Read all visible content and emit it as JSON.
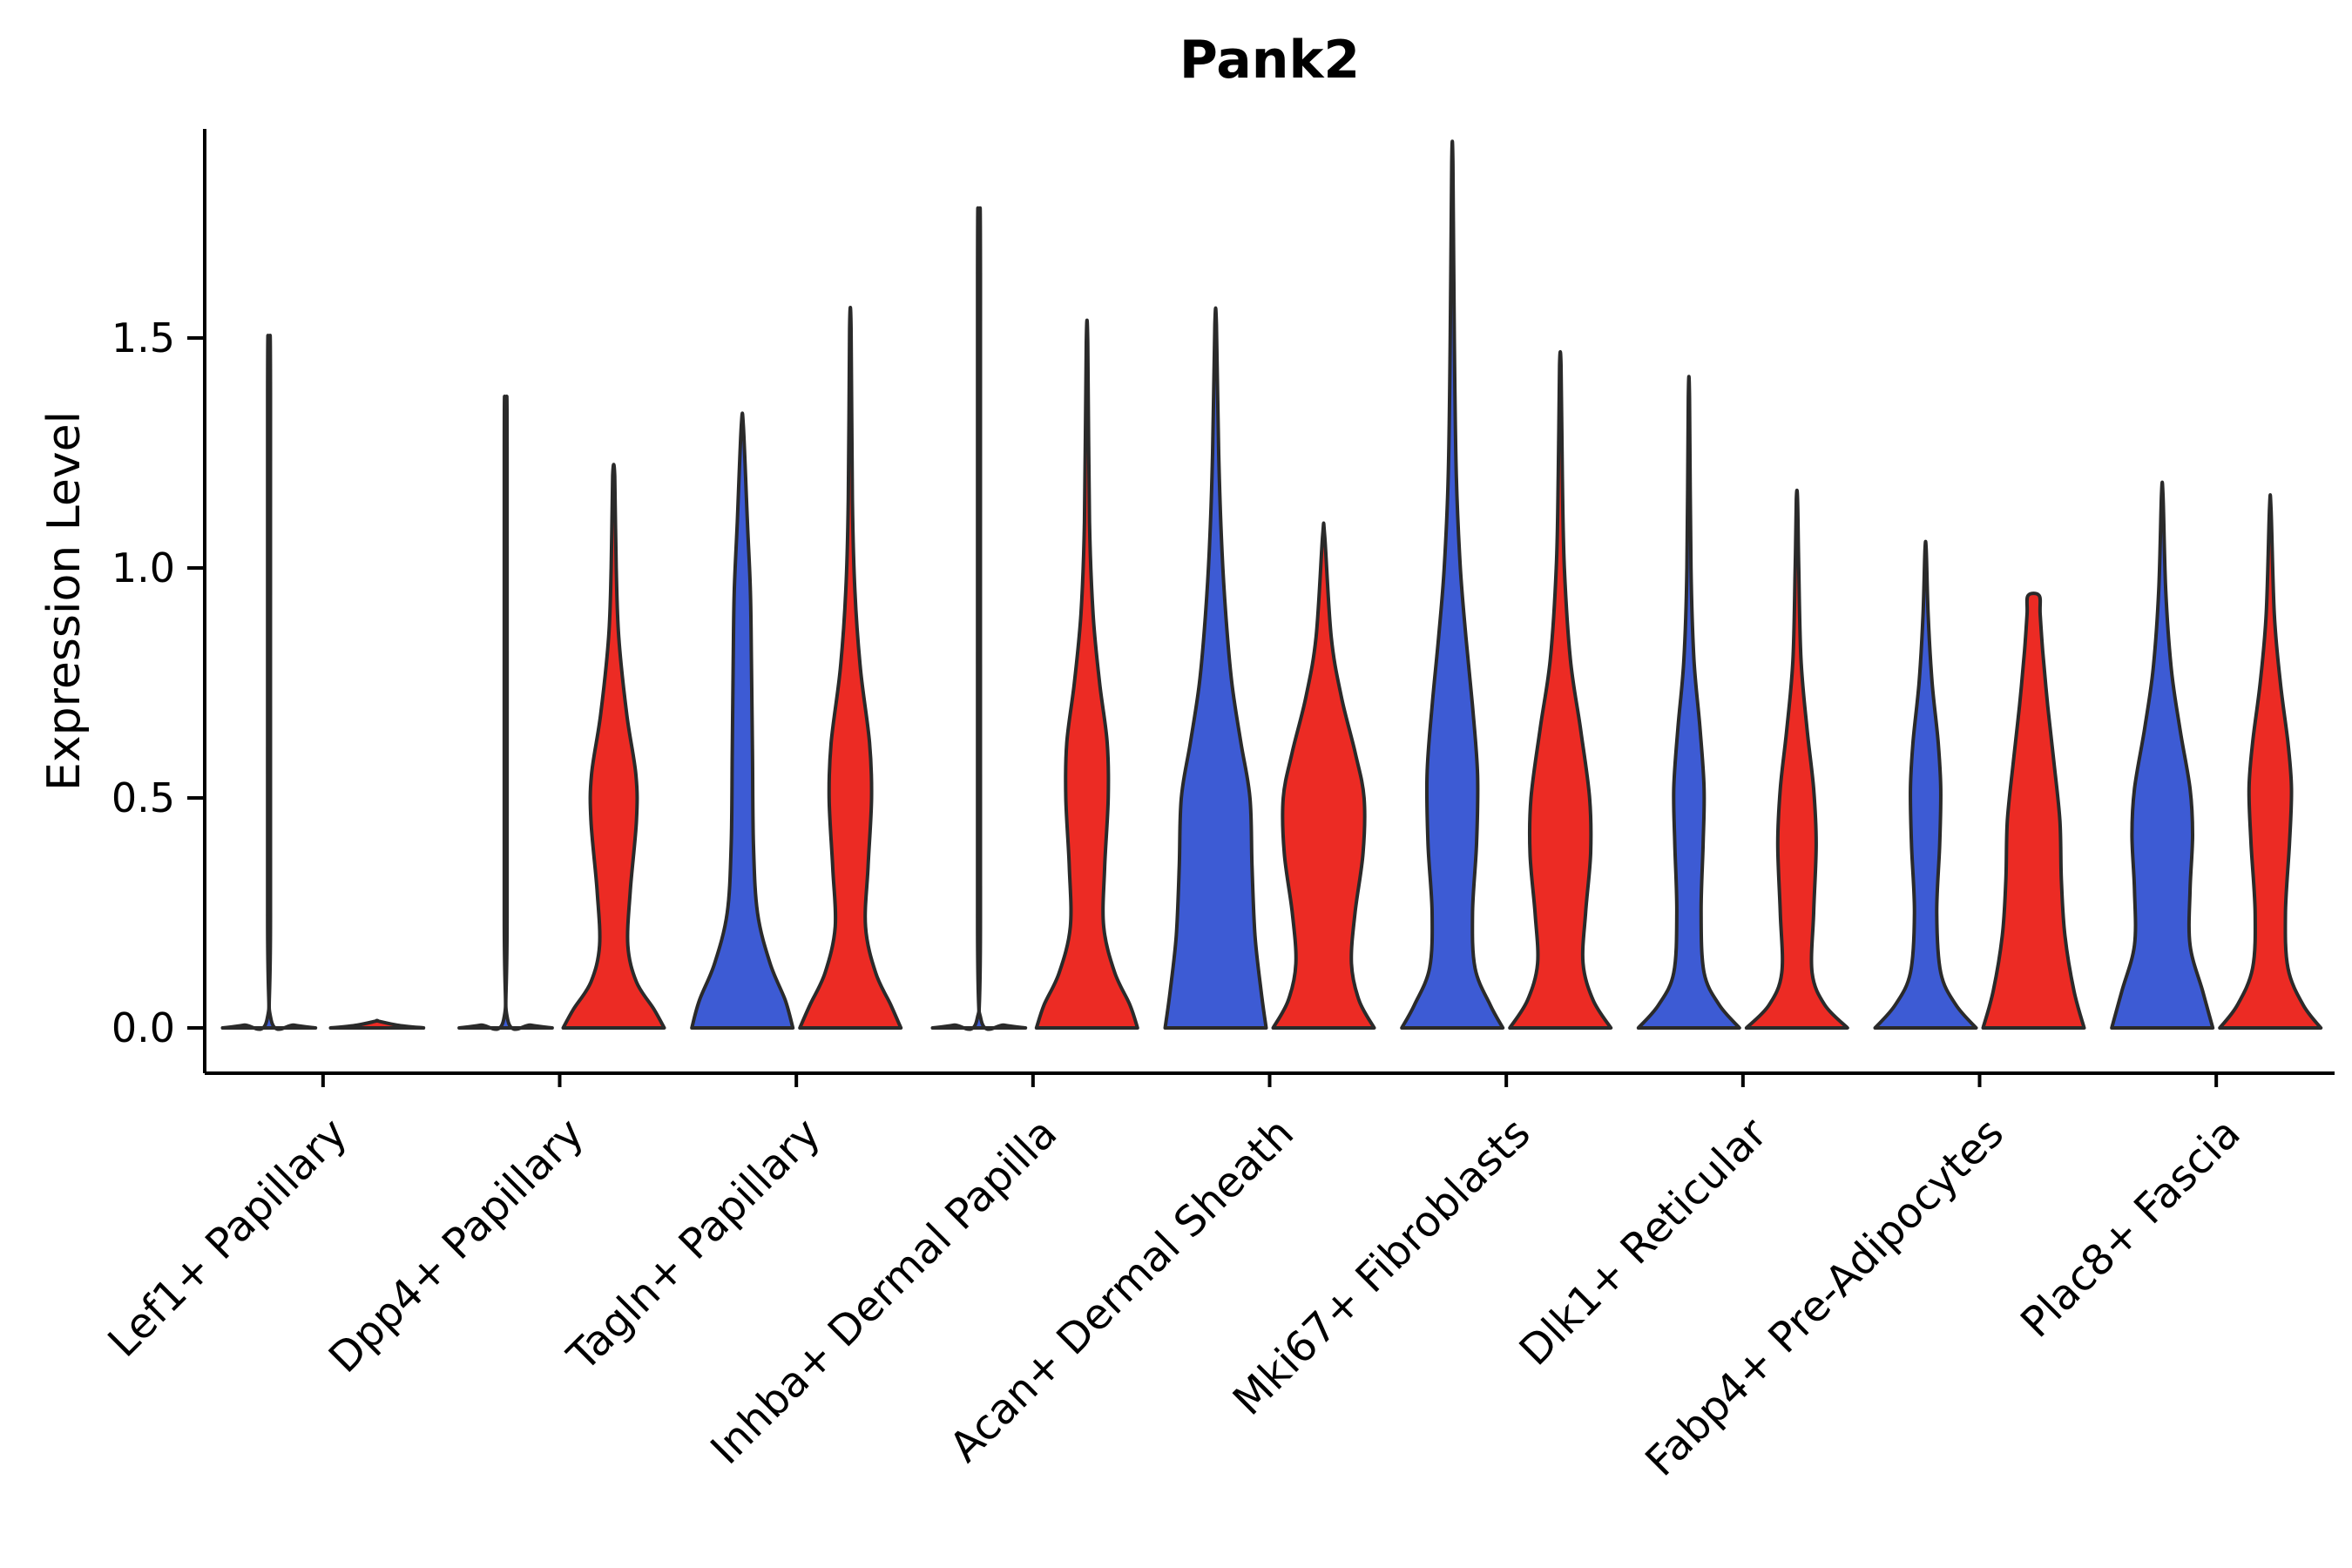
{
  "chart_data": {
    "type": "violin",
    "title": "Pank2",
    "ylabel": "Expression Level",
    "xlabel": "",
    "legend": "none",
    "grid": false,
    "ylim": [
      -0.1,
      1.95
    ],
    "yticks": [
      {
        "label": "0.0",
        "value": 0.0
      },
      {
        "label": "0.5",
        "value": 0.5
      },
      {
        "label": "1.0",
        "value": 1.0
      },
      {
        "label": "1.5",
        "value": 1.5
      }
    ],
    "colors": {
      "blue": "#3D5BD4",
      "red": "#EC2B24",
      "outline": "#2a2a2a",
      "axis": "#000000",
      "text": "#000000"
    },
    "categories": [
      "Lef1+ Papillary",
      "Dpp4+ Papillary",
      "Tagln+ Papillary",
      "Inhba+ Dermal Papilla",
      "Acan+ Dermal Sheath",
      "Mki67+ Fibroblasts",
      "Dlk1+ Reticular",
      "Fabp4+ Pre-Adipocytes",
      "Plac8+ Fascia"
    ],
    "violins": [
      {
        "category": "Lef1+ Papillary",
        "pair": [
          {
            "side": "left",
            "color": "blue",
            "max_expression": 1.49,
            "profile": [
              [
                0,
                0.92
              ],
              [
                0.006,
                0.5
              ],
              [
                0.018,
                0.04
              ],
              [
                0.25,
                0.028
              ],
              [
                1.38,
                0.028
              ],
              [
                1.49,
                0.012
              ]
            ]
          },
          {
            "side": "right",
            "color": "red",
            "max_expression": 0.02,
            "profile": [
              [
                0,
                0.92
              ],
              [
                0.006,
                0.4
              ],
              [
                0.015,
                0.012
              ]
            ]
          }
        ]
      },
      {
        "category": "Dpp4+ Papillary",
        "pair": [
          {
            "side": "left",
            "color": "blue",
            "max_expression": 1.36,
            "profile": [
              [
                0,
                0.92
              ],
              [
                0.006,
                0.5
              ],
              [
                0.018,
                0.04
              ],
              [
                0.25,
                0.028
              ],
              [
                1.26,
                0.028
              ],
              [
                1.36,
                0.012
              ]
            ]
          },
          {
            "side": "right",
            "color": "red",
            "max_expression": 1.2,
            "profile": [
              [
                0,
                1.0
              ],
              [
                0.04,
                0.8
              ],
              [
                0.1,
                0.45
              ],
              [
                0.18,
                0.28
              ],
              [
                0.3,
                0.33
              ],
              [
                0.45,
                0.45
              ],
              [
                0.55,
                0.44
              ],
              [
                0.68,
                0.26
              ],
              [
                0.85,
                0.1
              ],
              [
                1.0,
                0.05
              ],
              [
                1.2,
                0.02
              ]
            ]
          }
        ]
      },
      {
        "category": "Tagln+ Papillary",
        "pair": [
          {
            "side": "left",
            "color": "blue",
            "max_expression": 1.31,
            "profile": [
              [
                0,
                1.0
              ],
              [
                0.06,
                0.85
              ],
              [
                0.14,
                0.55
              ],
              [
                0.25,
                0.3
              ],
              [
                0.4,
                0.22
              ],
              [
                0.6,
                0.2
              ],
              [
                0.8,
                0.18
              ],
              [
                0.95,
                0.16
              ],
              [
                1.1,
                0.1
              ],
              [
                1.31,
                0.02
              ]
            ]
          },
          {
            "side": "right",
            "color": "red",
            "max_expression": 1.52,
            "profile": [
              [
                0,
                1.0
              ],
              [
                0.05,
                0.8
              ],
              [
                0.12,
                0.5
              ],
              [
                0.22,
                0.3
              ],
              [
                0.35,
                0.35
              ],
              [
                0.5,
                0.42
              ],
              [
                0.62,
                0.38
              ],
              [
                0.78,
                0.2
              ],
              [
                0.95,
                0.09
              ],
              [
                1.15,
                0.04
              ],
              [
                1.52,
                0.015
              ]
            ]
          }
        ]
      },
      {
        "category": "Inhba+ Dermal Papilla",
        "pair": [
          {
            "side": "left",
            "color": "blue",
            "max_expression": 1.75,
            "profile": [
              [
                0,
                0.92
              ],
              [
                0.006,
                0.5
              ],
              [
                0.018,
                0.04
              ],
              [
                0.25,
                0.028
              ],
              [
                1.64,
                0.028
              ],
              [
                1.75,
                0.012
              ]
            ]
          },
          {
            "side": "right",
            "color": "red",
            "max_expression": 1.49,
            "profile": [
              [
                0,
                1.0
              ],
              [
                0.05,
                0.85
              ],
              [
                0.12,
                0.55
              ],
              [
                0.22,
                0.33
              ],
              [
                0.35,
                0.35
              ],
              [
                0.5,
                0.42
              ],
              [
                0.62,
                0.4
              ],
              [
                0.75,
                0.25
              ],
              [
                0.9,
                0.12
              ],
              [
                1.1,
                0.05
              ],
              [
                1.49,
                0.015
              ]
            ]
          }
        ]
      },
      {
        "category": "Acan+ Dermal Sheath",
        "pair": [
          {
            "side": "left",
            "color": "blue",
            "max_expression": 1.53,
            "profile": [
              [
                0,
                1.0
              ],
              [
                0.08,
                0.9
              ],
              [
                0.2,
                0.78
              ],
              [
                0.35,
                0.72
              ],
              [
                0.5,
                0.68
              ],
              [
                0.62,
                0.5
              ],
              [
                0.75,
                0.32
              ],
              [
                0.9,
                0.2
              ],
              [
                1.05,
                0.12
              ],
              [
                1.25,
                0.06
              ],
              [
                1.53,
                0.015
              ]
            ]
          },
          {
            "side": "right",
            "color": "red",
            "max_expression": 1.07,
            "profile": [
              [
                0,
                1.0
              ],
              [
                0.06,
                0.7
              ],
              [
                0.14,
                0.55
              ],
              [
                0.25,
                0.62
              ],
              [
                0.38,
                0.78
              ],
              [
                0.5,
                0.8
              ],
              [
                0.6,
                0.62
              ],
              [
                0.72,
                0.35
              ],
              [
                0.85,
                0.15
              ],
              [
                1.07,
                0.02
              ]
            ]
          }
        ]
      },
      {
        "category": "Mki67+ Fibroblasts",
        "pair": [
          {
            "side": "left",
            "color": "blue",
            "max_expression": 1.88,
            "profile": [
              [
                0,
                1.0
              ],
              [
                0.05,
                0.75
              ],
              [
                0.13,
                0.45
              ],
              [
                0.25,
                0.4
              ],
              [
                0.4,
                0.48
              ],
              [
                0.55,
                0.5
              ],
              [
                0.7,
                0.4
              ],
              [
                0.85,
                0.27
              ],
              [
                1.0,
                0.16
              ],
              [
                1.2,
                0.08
              ],
              [
                1.5,
                0.04
              ],
              [
                1.88,
                0.012
              ]
            ]
          },
          {
            "side": "right",
            "color": "red",
            "max_expression": 1.44,
            "profile": [
              [
                0,
                1.0
              ],
              [
                0.06,
                0.65
              ],
              [
                0.14,
                0.45
              ],
              [
                0.25,
                0.5
              ],
              [
                0.38,
                0.6
              ],
              [
                0.5,
                0.58
              ],
              [
                0.65,
                0.4
              ],
              [
                0.8,
                0.2
              ],
              [
                1.0,
                0.08
              ],
              [
                1.2,
                0.04
              ],
              [
                1.44,
                0.015
              ]
            ]
          }
        ]
      },
      {
        "category": "Dlk1+ Reticular",
        "pair": [
          {
            "side": "left",
            "color": "blue",
            "max_expression": 1.37,
            "profile": [
              [
                0,
                1.0
              ],
              [
                0.05,
                0.6
              ],
              [
                0.12,
                0.3
              ],
              [
                0.25,
                0.24
              ],
              [
                0.4,
                0.28
              ],
              [
                0.52,
                0.3
              ],
              [
                0.65,
                0.22
              ],
              [
                0.8,
                0.1
              ],
              [
                1.0,
                0.04
              ],
              [
                1.37,
                0.012
              ]
            ]
          },
          {
            "side": "right",
            "color": "red",
            "max_expression": 1.15,
            "profile": [
              [
                0,
                1.0
              ],
              [
                0.05,
                0.55
              ],
              [
                0.12,
                0.3
              ],
              [
                0.25,
                0.33
              ],
              [
                0.4,
                0.38
              ],
              [
                0.52,
                0.33
              ],
              [
                0.65,
                0.2
              ],
              [
                0.8,
                0.08
              ],
              [
                1.0,
                0.035
              ],
              [
                1.15,
                0.012
              ]
            ]
          }
        ]
      },
      {
        "category": "Fabp4+ Pre-Adipocytes",
        "pair": [
          {
            "side": "left",
            "color": "blue",
            "max_expression": 1.04,
            "profile": [
              [
                0,
                1.0
              ],
              [
                0.05,
                0.6
              ],
              [
                0.12,
                0.3
              ],
              [
                0.25,
                0.22
              ],
              [
                0.4,
                0.28
              ],
              [
                0.52,
                0.3
              ],
              [
                0.62,
                0.25
              ],
              [
                0.75,
                0.13
              ],
              [
                0.9,
                0.05
              ],
              [
                1.04,
                0.012
              ]
            ]
          },
          {
            "side": "right",
            "color": "red",
            "max_expression": 0.94,
            "profile": [
              [
                0,
                1.0
              ],
              [
                0.08,
                0.8
              ],
              [
                0.2,
                0.62
              ],
              [
                0.32,
                0.55
              ],
              [
                0.45,
                0.52
              ],
              [
                0.58,
                0.4
              ],
              [
                0.7,
                0.28
              ],
              [
                0.82,
                0.18
              ],
              [
                0.9,
                0.13
              ],
              [
                0.94,
                0.11
              ]
            ]
          }
        ]
      },
      {
        "category": "Plac8+ Fascia",
        "pair": [
          {
            "side": "left",
            "color": "blue",
            "max_expression": 1.16,
            "profile": [
              [
                0,
                1.0
              ],
              [
                0.08,
                0.8
              ],
              [
                0.18,
                0.55
              ],
              [
                0.3,
                0.55
              ],
              [
                0.42,
                0.6
              ],
              [
                0.52,
                0.55
              ],
              [
                0.65,
                0.35
              ],
              [
                0.78,
                0.18
              ],
              [
                0.95,
                0.07
              ],
              [
                1.16,
                0.015
              ]
            ]
          },
          {
            "side": "right",
            "color": "red",
            "max_expression": 1.13,
            "profile": [
              [
                0,
                1.0
              ],
              [
                0.05,
                0.65
              ],
              [
                0.13,
                0.35
              ],
              [
                0.25,
                0.3
              ],
              [
                0.4,
                0.38
              ],
              [
                0.52,
                0.42
              ],
              [
                0.62,
                0.35
              ],
              [
                0.75,
                0.2
              ],
              [
                0.9,
                0.08
              ],
              [
                1.13,
                0.015
              ]
            ]
          }
        ]
      }
    ]
  }
}
